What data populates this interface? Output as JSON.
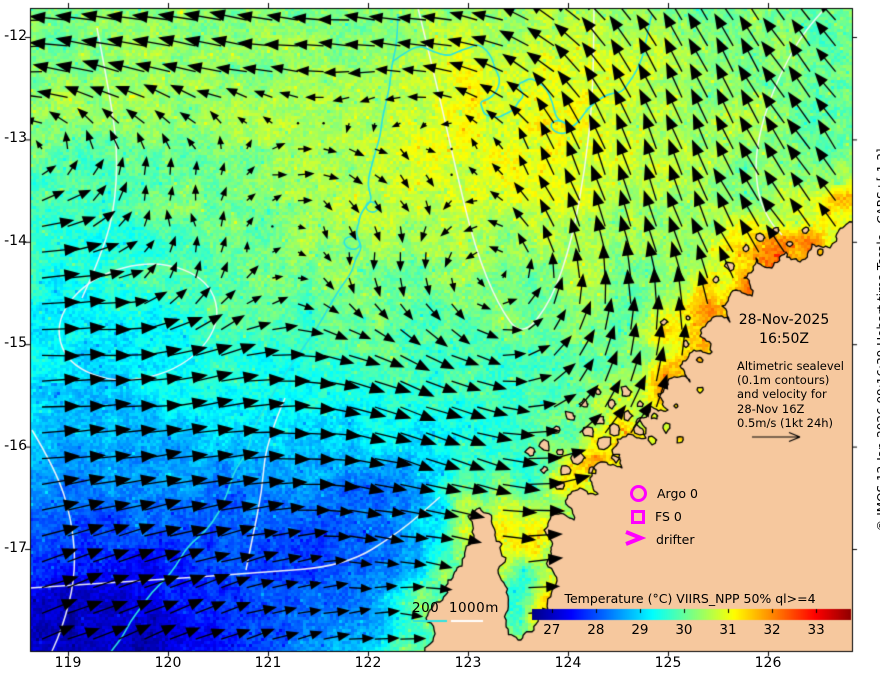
{
  "map": {
    "x_tick_labels": [
      "119",
      "120",
      "121",
      "122",
      "123",
      "124",
      "125",
      "126"
    ],
    "y_tick_labels": [
      "-12",
      "-13",
      "-14",
      "-15",
      "-16",
      "-17"
    ]
  },
  "annotations": {
    "datetime_line1": "28-Nov-2025",
    "datetime_line2": "16:50Z",
    "altimetric": [
      "Altimetric sealevel",
      "(0.1m contours)",
      "and velocity for",
      "28-Nov 16Z",
      "0.5m/s (1kt 24h)"
    ],
    "credit": "© IMOS 12-Jan-2026 09:16:39 Hobart time Tscale=CARS+[-1 3]"
  },
  "legend": {
    "marker_color": "#ff00ff",
    "argo_label": "Argo 0",
    "fs_label": "FS 0",
    "drifter_label": "drifter"
  },
  "scalebar": {
    "label_200": "200",
    "label_1000": "1000m",
    "color_200m_contour": "#2ae3e3",
    "color_1000m_contour": "#ffffff"
  },
  "colorbar": {
    "title": "Temperature (°C) VIIRS_NPP 50% ql>=4",
    "tick_labels": [
      "27",
      "28",
      "29",
      "30",
      "31",
      "32",
      "33"
    ],
    "range_min": 26.55,
    "range_max": 33.77,
    "colormap": "jet"
  },
  "colors": {
    "land": "#f6c89e",
    "arrow": "#000000",
    "ssh_contour": "#f7f7f7",
    "bathy_contour": "#2ae3e3",
    "background": "#ffffff"
  }
}
